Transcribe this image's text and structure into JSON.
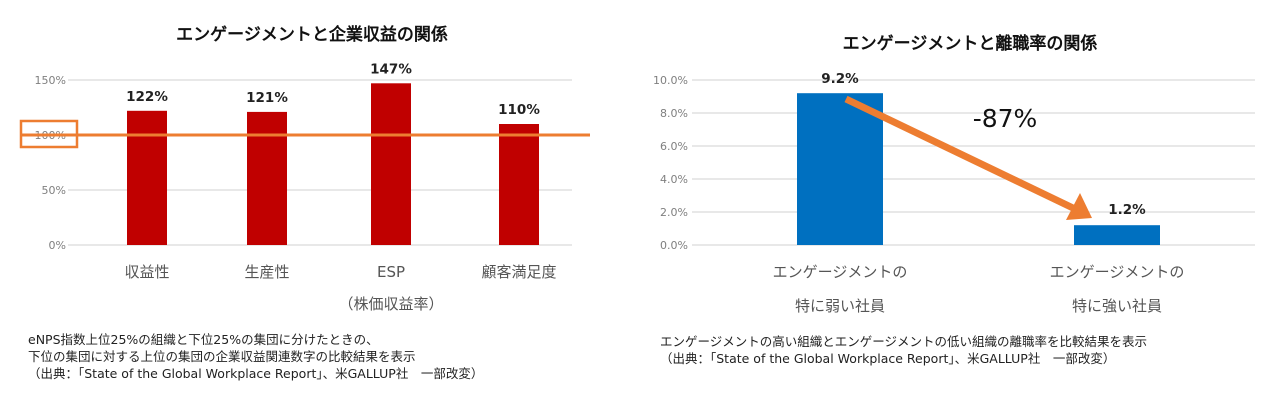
{
  "chart_data": [
    {
      "type": "bar",
      "title": "エンゲージメントと企業収益の関係",
      "categories": [
        "収益性",
        "生産性",
        "ESP",
        "顧客満足度"
      ],
      "category_sublabels": [
        "",
        "",
        "（株価収益率）",
        ""
      ],
      "values": [
        122,
        121,
        147,
        110
      ],
      "data_labels": [
        "122%",
        "121%",
        "147%",
        "110%"
      ],
      "ylim": [
        0,
        150
      ],
      "yticks": [
        "0%",
        "50%",
        "100%",
        "150%"
      ],
      "yticks_values": [
        0,
        50,
        100,
        150
      ],
      "reference_line": 100,
      "grid": true,
      "bar_color": "#c00000",
      "highlight_color": "#ed7d31"
    },
    {
      "type": "bar",
      "title": "エンゲージメントと離職率の関係",
      "categories": [
        "エンゲージメントの\n特に弱い社員",
        "エンゲージメントの\n特に強い社員"
      ],
      "values": [
        9.2,
        1.2
      ],
      "data_labels": [
        "9.2%",
        "1.2%"
      ],
      "ylim": [
        0,
        10
      ],
      "yticks": [
        "0.0%",
        "2.0%",
        "4.0%",
        "6.0%",
        "8.0%",
        "10.0%"
      ],
      "yticks_values": [
        0,
        2,
        4,
        6,
        8,
        10
      ],
      "annotation": "-87%",
      "grid": true,
      "bar_color": "#0070c0",
      "arrow_color": "#ed7d31"
    }
  ],
  "notes": {
    "left": "eNPS指数上位25%の組織と下位25%の集団に分けたときの、\n下位の集団に対する上位の集団の企業収益関連数字の比較結果を表示\n（出典：「State of the Global Workplace Report」、米GALLUP社　一部改変）",
    "right": "エンゲージメントの高い組織とエンゲージメントの低い組織の離職率を比較結果を表示\n（出典：「State of the Global Workplace Report」、米GALLUP社　一部改変）"
  }
}
